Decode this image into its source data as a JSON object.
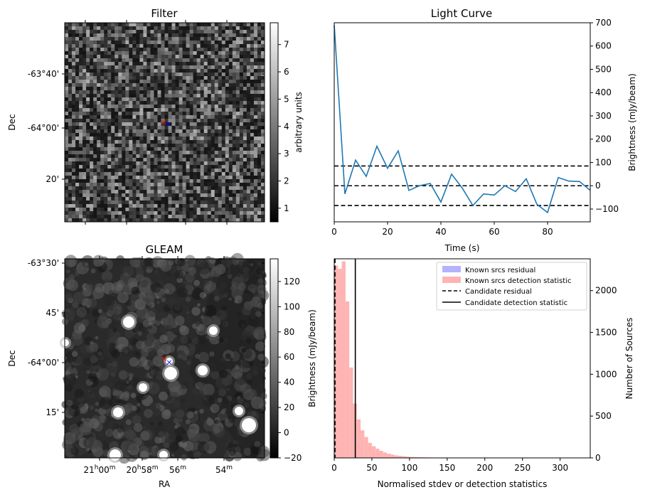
{
  "chart_data": [
    {
      "type": "heatmap",
      "title": "Filter",
      "xlabel": "",
      "ylabel": "Dec",
      "y_ticks": [
        "-63°40'",
        "-64°00'",
        "20'"
      ],
      "colorbar": {
        "label": "arbitrary units",
        "range": [
          0.5,
          7.8
        ],
        "ticks": [
          "1",
          "2",
          "3",
          "4",
          "5",
          "6",
          "7"
        ]
      },
      "colormap": "gray",
      "markers": [
        {
          "symbol": "x",
          "color": "#ff0000"
        },
        {
          "symbol": "x",
          "color": "#0000ff"
        }
      ]
    },
    {
      "type": "line",
      "title": "Light Curve",
      "xlabel": "Time (s)",
      "ylabel": "Brightness (mJy/beam)",
      "xlim": [
        0,
        96
      ],
      "ylim": [
        -155,
        700
      ],
      "x_ticks": [
        0,
        20,
        40,
        60,
        80
      ],
      "y_ticks": [
        -100,
        0,
        100,
        200,
        300,
        400,
        500,
        600,
        700
      ],
      "series": [
        {
          "color": "#1f77b4",
          "x": [
            0,
            4,
            8,
            12,
            16,
            20,
            24,
            28,
            32,
            36,
            40,
            44,
            48,
            52,
            56,
            60,
            64,
            68,
            72,
            76,
            80,
            84,
            88,
            92,
            96
          ],
          "values": [
            690,
            -35,
            110,
            40,
            170,
            75,
            150,
            -20,
            0,
            10,
            -70,
            50,
            -10,
            -85,
            -35,
            -40,
            0,
            -25,
            30,
            -80,
            -115,
            35,
            20,
            18,
            -20
          ]
        }
      ],
      "hlines": [
        {
          "y": 85,
          "style": "dashed"
        },
        {
          "y": 0,
          "style": "dashed"
        },
        {
          "y": -85,
          "style": "dashed"
        }
      ]
    },
    {
      "type": "heatmap",
      "title": "GLEAM",
      "xlabel": "RA",
      "ylabel": "Dec",
      "x_ticks": [
        "21h00m",
        "20h58m",
        "56m",
        "54m"
      ],
      "y_ticks": [
        "-63°30'",
        "45'",
        "-64°00'",
        "15'"
      ],
      "colorbar": {
        "label": "Brightness (mJy/beam)",
        "range": [
          -20,
          138
        ],
        "ticks": [
          "−20",
          "0",
          "20",
          "40",
          "60",
          "80",
          "100",
          "120"
        ]
      },
      "colormap": "gray",
      "markers": [
        {
          "symbol": "x",
          "color": "#ff0000"
        },
        {
          "symbol": "x",
          "color": "#0000ff"
        }
      ]
    },
    {
      "type": "bar",
      "title": "",
      "xlabel": "Normalised stdev or detection statistics",
      "ylabel": "Number of Sources",
      "xlim": [
        0,
        340
      ],
      "ylim": [
        0,
        2380
      ],
      "x_ticks": [
        0,
        50,
        100,
        150,
        200,
        250,
        300
      ],
      "y_ticks": [
        0,
        500,
        1000,
        1500,
        2000
      ],
      "bin_width": 5,
      "series": [
        {
          "name": "Known srcs residual",
          "color": "#b3b3ff",
          "bin_starts": [],
          "values": []
        },
        {
          "name": "Known srcs detection statistic",
          "color": "#ffb3b3",
          "bin_starts": [
            0,
            5,
            10,
            15,
            20,
            25,
            30,
            35,
            40,
            45,
            50,
            55,
            60,
            65,
            70,
            75,
            80,
            85,
            90,
            95,
            100,
            105,
            110,
            115,
            120,
            125,
            130,
            135,
            140,
            145,
            150,
            155,
            160,
            165,
            170,
            175,
            180,
            185,
            190,
            195,
            200,
            205,
            210,
            215,
            220,
            225,
            230,
            235,
            240,
            245,
            250,
            255,
            260,
            265,
            270,
            275,
            280,
            285,
            290,
            295,
            300,
            305,
            310
          ],
          "values": [
            2300,
            2260,
            2350,
            1870,
            1080,
            650,
            460,
            330,
            250,
            180,
            140,
            110,
            85,
            65,
            50,
            40,
            30,
            24,
            20,
            15,
            12,
            10,
            8,
            7,
            6,
            5,
            4,
            4,
            3,
            3,
            2,
            2,
            2,
            2,
            1,
            1,
            1,
            1,
            1,
            1,
            1,
            1,
            1,
            1,
            1,
            1,
            1,
            1,
            1,
            1,
            1,
            1,
            1,
            1,
            1,
            1,
            1,
            1,
            1,
            1,
            1,
            1,
            1
          ]
        }
      ],
      "vlines": [
        {
          "name": "Candidate residual",
          "x": 1,
          "style": "dashed"
        },
        {
          "name": "Candidate detection statistic",
          "x": 28,
          "style": "solid"
        }
      ],
      "legend": "top-right"
    }
  ]
}
